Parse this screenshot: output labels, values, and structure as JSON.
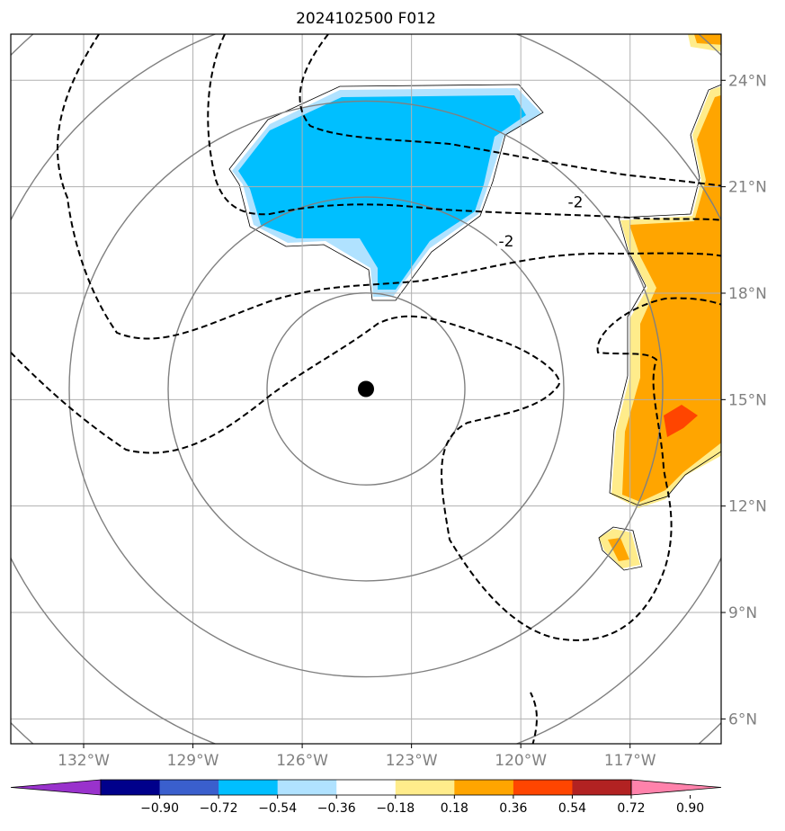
{
  "title": "2024102500 F012",
  "map": {
    "lon_range": [
      -134,
      -114.5
    ],
    "lat_range": [
      5.3,
      25.3
    ],
    "lat_ticks": [
      {
        "value": 24,
        "label": "24°N"
      },
      {
        "value": 21,
        "label": "21°N"
      },
      {
        "value": 18,
        "label": "18°N"
      },
      {
        "value": 15,
        "label": "15°N"
      },
      {
        "value": 12,
        "label": "12°N"
      },
      {
        "value": 9,
        "label": "9°N"
      },
      {
        "value": 6,
        "label": "6°N"
      }
    ],
    "lon_ticks": [
      {
        "value": -132,
        "label": "132°W"
      },
      {
        "value": -129,
        "label": "129°W"
      },
      {
        "value": -126,
        "label": "126°W"
      },
      {
        "value": -123,
        "label": "123°W"
      },
      {
        "value": -120,
        "label": "120°W"
      },
      {
        "value": -117,
        "label": "117°W"
      }
    ],
    "storm_center": {
      "lon": -124.25,
      "lat": 15.3
    },
    "range_ring_count": 5,
    "contour_labels": [
      {
        "text": "-2",
        "lon": -118.5,
        "lat": 20.5
      },
      {
        "text": "-2",
        "lon": -120.4,
        "lat": 19.4
      }
    ]
  },
  "colorbar": {
    "colors": [
      "#9932cc",
      "#00008b",
      "#3a5fcd",
      "#00bfff",
      "#b0e2ff",
      "#ffffff",
      "#ffec8b",
      "#ffa500",
      "#ff4500",
      "#b22222",
      "#ff82ab"
    ],
    "tick_labels": [
      "−0.90",
      "−0.72",
      "−0.54",
      "−0.36",
      "−0.18",
      "0.18",
      "0.36",
      "0.54",
      "0.72",
      "0.90"
    ]
  },
  "colors": {
    "negative_fill_light": "#b0e2ff",
    "negative_fill": "#00bfff",
    "positive_fill_light": "#ffec8b",
    "positive_fill": "#ffa500",
    "positive_fill_strong": "#ff4500",
    "grid": "#b0b0b0",
    "ring": "#808080"
  }
}
